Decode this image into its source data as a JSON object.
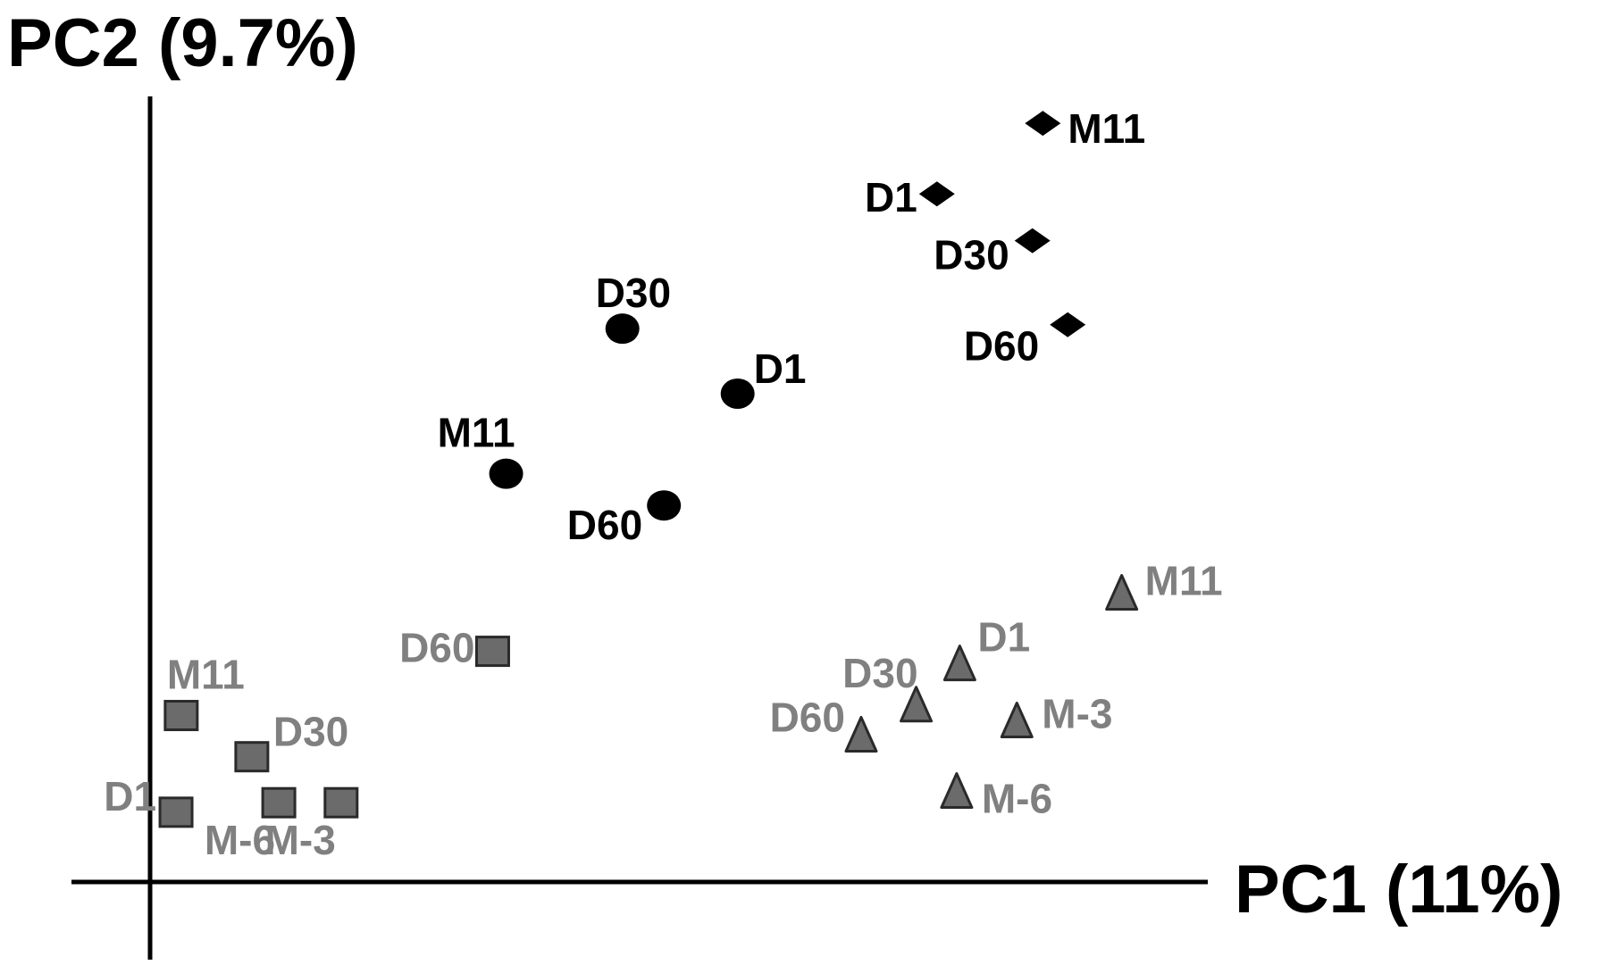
{
  "chart_data": {
    "type": "scatter",
    "title": "",
    "xlabel": "PC1 (11%)",
    "ylabel": "PC2 (9.7%)",
    "xlim": [
      0,
      100
    ],
    "ylim": [
      0,
      100
    ],
    "grid": false,
    "legend": "none",
    "series": [
      {
        "marker": "square",
        "color": "#6b6b6b",
        "label_color": "#808080",
        "points": [
          {
            "label": "M11",
            "x": 3.0,
            "y": 21.0
          },
          {
            "label": "D1",
            "x": 2.5,
            "y": 8.8
          },
          {
            "label": "D30",
            "x": 9.8,
            "y": 15.8
          },
          {
            "label": "M-6",
            "x": 12.4,
            "y": 10.0
          },
          {
            "label": "M-3",
            "x": 18.4,
            "y": 10.0
          },
          {
            "label": "D60",
            "x": 33.0,
            "y": 29.1
          }
        ]
      },
      {
        "marker": "circle",
        "color": "#000000",
        "label_color": "#000000",
        "points": [
          {
            "label": "D30",
            "x": 45.5,
            "y": 69.8
          },
          {
            "label": "D1",
            "x": 56.6,
            "y": 61.6
          },
          {
            "label": "M11",
            "x": 34.3,
            "y": 51.5
          },
          {
            "label": "D60",
            "x": 49.5,
            "y": 47.5
          }
        ]
      },
      {
        "marker": "diamond",
        "color": "#000000",
        "label_color": "#000000",
        "points": [
          {
            "label": "M11",
            "x": 86.0,
            "y": 95.7
          },
          {
            "label": "D1",
            "x": 75.8,
            "y": 86.8
          },
          {
            "label": "D30",
            "x": 85.0,
            "y": 80.9
          },
          {
            "label": "D60",
            "x": 88.4,
            "y": 70.3
          }
        ]
      },
      {
        "marker": "triangle",
        "color": "#6b6b6b",
        "label_color": "#808080",
        "points": [
          {
            "label": "M11",
            "x": 93.6,
            "y": 36.2
          },
          {
            "label": "D1",
            "x": 78.0,
            "y": 27.3
          },
          {
            "label": "D30",
            "x": 73.8,
            "y": 22.1
          },
          {
            "label": "D60",
            "x": 68.5,
            "y": 18.3
          },
          {
            "label": "M-3",
            "x": 83.5,
            "y": 20.1
          },
          {
            "label": "M-6",
            "x": 77.7,
            "y": 11.2
          }
        ]
      }
    ]
  }
}
